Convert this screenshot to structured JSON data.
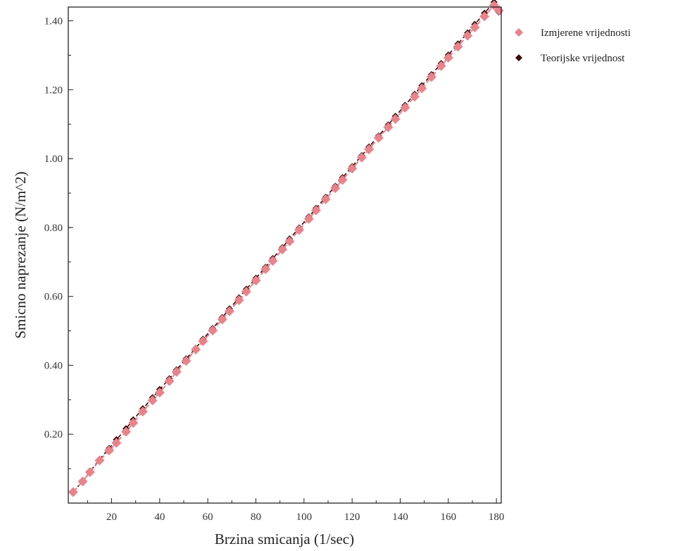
{
  "chart_data": {
    "type": "scatter",
    "xlabel": "Brzina smicanja (1/sec)",
    "ylabel": "Smicno naprezanje (N/m^2)",
    "xlim": [
      2,
      182
    ],
    "ylim": [
      0.0,
      1.44
    ],
    "x_ticks": [
      20,
      40,
      60,
      80,
      100,
      120,
      140,
      160,
      180
    ],
    "x_tick_labels": [
      "20",
      "40",
      "60",
      "80",
      "100",
      "120",
      "140",
      "160",
      "180"
    ],
    "y_ticks": [
      0.2,
      0.4,
      0.6,
      0.8,
      1.0,
      1.2,
      1.4
    ],
    "y_tick_labels": [
      "0.20",
      "0.40",
      "0.60",
      "0.80",
      "1.00",
      "1.20",
      "1.40"
    ],
    "grid": false,
    "legend_position": "right",
    "series": [
      {
        "name": "Izmjerene vrijednosti",
        "color": "#e8838b",
        "marker": "diamond",
        "x": [
          4,
          8,
          11,
          15,
          19,
          22,
          26,
          29,
          33,
          37,
          40,
          44,
          47,
          51,
          55,
          58,
          62,
          66,
          69,
          73,
          76,
          80,
          84,
          87,
          91,
          94,
          98,
          102,
          105,
          109,
          113,
          116,
          120,
          124,
          127,
          131,
          135,
          138,
          142,
          146,
          149,
          153,
          157,
          160,
          164,
          168,
          171,
          175,
          179,
          181
        ],
        "y": [
          0.032,
          0.063,
          0.09,
          0.124,
          0.153,
          0.175,
          0.207,
          0.233,
          0.266,
          0.298,
          0.321,
          0.354,
          0.381,
          0.413,
          0.446,
          0.47,
          0.501,
          0.533,
          0.557,
          0.589,
          0.614,
          0.646,
          0.679,
          0.703,
          0.736,
          0.76,
          0.793,
          0.825,
          0.85,
          0.882,
          0.914,
          0.938,
          0.971,
          1.003,
          1.027,
          1.06,
          1.091,
          1.115,
          1.148,
          1.18,
          1.204,
          1.237,
          1.269,
          1.293,
          1.325,
          1.357,
          1.381,
          1.413,
          1.445,
          1.43
        ]
      },
      {
        "name": "Teorijske vrijednost",
        "color": "#3b0a0a",
        "marker": "diamond",
        "x": [
          4,
          8,
          11,
          15,
          19,
          22,
          26,
          29,
          33,
          37,
          40,
          44,
          47,
          51,
          55,
          58,
          62,
          66,
          69,
          73,
          76,
          80,
          84,
          87,
          91,
          94,
          98,
          102,
          105,
          109,
          113,
          116,
          120,
          124,
          127,
          131,
          135,
          138,
          142,
          146,
          149,
          153,
          157,
          160,
          164,
          168,
          171,
          175,
          179,
          181
        ],
        "y": [
          0.032,
          0.064,
          0.091,
          0.127,
          0.159,
          0.184,
          0.216,
          0.242,
          0.274,
          0.306,
          0.33,
          0.361,
          0.387,
          0.419,
          0.45,
          0.476,
          0.507,
          0.539,
          0.564,
          0.596,
          0.621,
          0.653,
          0.685,
          0.71,
          0.742,
          0.767,
          0.799,
          0.831,
          0.856,
          0.888,
          0.92,
          0.945,
          0.977,
          1.009,
          1.034,
          1.066,
          1.098,
          1.123,
          1.155,
          1.187,
          1.212,
          1.244,
          1.276,
          1.301,
          1.333,
          1.365,
          1.39,
          1.422,
          1.454,
          1.425
        ]
      }
    ]
  }
}
